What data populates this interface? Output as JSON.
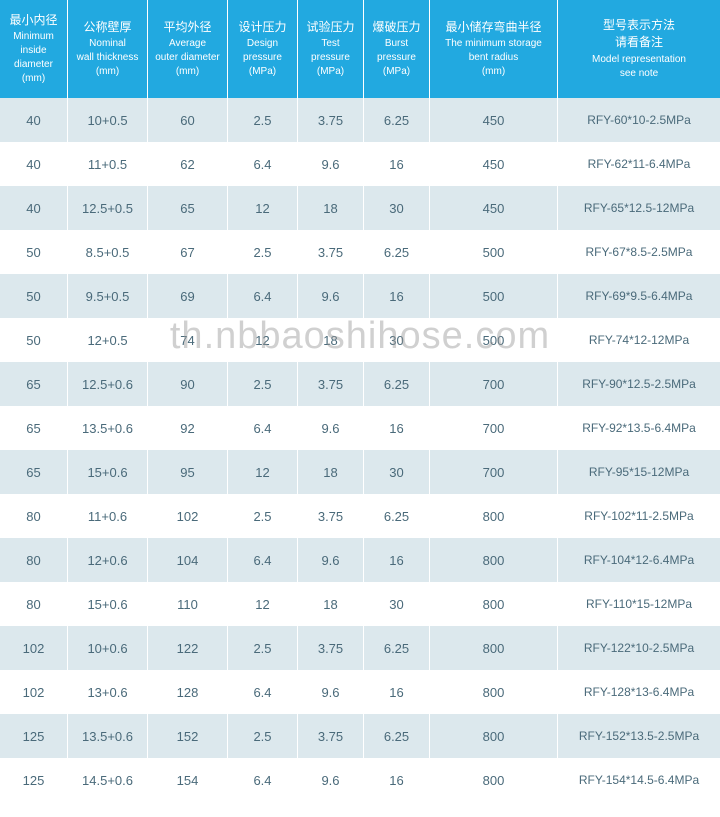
{
  "watermark": "th.nbbaoshihose.com",
  "columns": [
    {
      "cn": "最小内径",
      "en1": "Minimum",
      "en2": "inside diameter",
      "en3": "(mm)"
    },
    {
      "cn": "公称壁厚",
      "en1": "Nominal",
      "en2": "wall thickness",
      "en3": "(mm)"
    },
    {
      "cn": "平均外径",
      "en1": "Average",
      "en2": "outer diameter",
      "en3": "(mm)"
    },
    {
      "cn": "设计压力",
      "en1": "Design",
      "en2": "pressure",
      "en3": "(MPa)"
    },
    {
      "cn": "试验压力",
      "en1": "Test",
      "en2": "pressure",
      "en3": "(MPa)"
    },
    {
      "cn": "爆破压力",
      "en1": "Burst",
      "en2": "pressure",
      "en3": "(MPa)"
    },
    {
      "cn": "最小储存弯曲半径",
      "en1": "The minimum storage",
      "en2": "bent radius",
      "en3": "(mm)"
    },
    {
      "cn": "型号表示方法\n请看备注",
      "en1": "Model representation",
      "en2": "see note",
      "en3": ""
    }
  ],
  "rows": [
    [
      "40",
      "10+0.5",
      "60",
      "2.5",
      "3.75",
      "6.25",
      "450",
      "RFY-60*10-2.5MPa"
    ],
    [
      "40",
      "11+0.5",
      "62",
      "6.4",
      "9.6",
      "16",
      "450",
      "RFY-62*11-6.4MPa"
    ],
    [
      "40",
      "12.5+0.5",
      "65",
      "12",
      "18",
      "30",
      "450",
      "RFY-65*12.5-12MPa"
    ],
    [
      "50",
      "8.5+0.5",
      "67",
      "2.5",
      "3.75",
      "6.25",
      "500",
      "RFY-67*8.5-2.5MPa"
    ],
    [
      "50",
      "9.5+0.5",
      "69",
      "6.4",
      "9.6",
      "16",
      "500",
      "RFY-69*9.5-6.4MPa"
    ],
    [
      "50",
      "12+0.5",
      "74",
      "12",
      "18",
      "30",
      "500",
      "RFY-74*12-12MPa"
    ],
    [
      "65",
      "12.5+0.6",
      "90",
      "2.5",
      "3.75",
      "6.25",
      "700",
      "RFY-90*12.5-2.5MPa"
    ],
    [
      "65",
      "13.5+0.6",
      "92",
      "6.4",
      "9.6",
      "16",
      "700",
      "RFY-92*13.5-6.4MPa"
    ],
    [
      "65",
      "15+0.6",
      "95",
      "12",
      "18",
      "30",
      "700",
      "RFY-95*15-12MPa"
    ],
    [
      "80",
      "11+0.6",
      "102",
      "2.5",
      "3.75",
      "6.25",
      "800",
      "RFY-102*11-2.5MPa"
    ],
    [
      "80",
      "12+0.6",
      "104",
      "6.4",
      "9.6",
      "16",
      "800",
      "RFY-104*12-6.4MPa"
    ],
    [
      "80",
      "15+0.6",
      "110",
      "12",
      "18",
      "30",
      "800",
      "RFY-110*15-12MPa"
    ],
    [
      "102",
      "10+0.6",
      "122",
      "2.5",
      "3.75",
      "6.25",
      "800",
      "RFY-122*10-2.5MPa"
    ],
    [
      "102",
      "13+0.6",
      "128",
      "6.4",
      "9.6",
      "16",
      "800",
      "RFY-128*13-6.4MPa"
    ],
    [
      "125",
      "13.5+0.6",
      "152",
      "2.5",
      "3.75",
      "6.25",
      "800",
      "RFY-152*13.5-2.5MPa"
    ],
    [
      "125",
      "14.5+0.6",
      "154",
      "6.4",
      "9.6",
      "16",
      "800",
      "RFY-154*14.5-6.4MPa"
    ]
  ],
  "colors": {
    "header_bg": "#22a9e0",
    "header_text": "#ffffff",
    "row_even_bg": "#dce8ed",
    "row_odd_bg": "#ffffff",
    "cell_text": "#4a6a7a"
  }
}
